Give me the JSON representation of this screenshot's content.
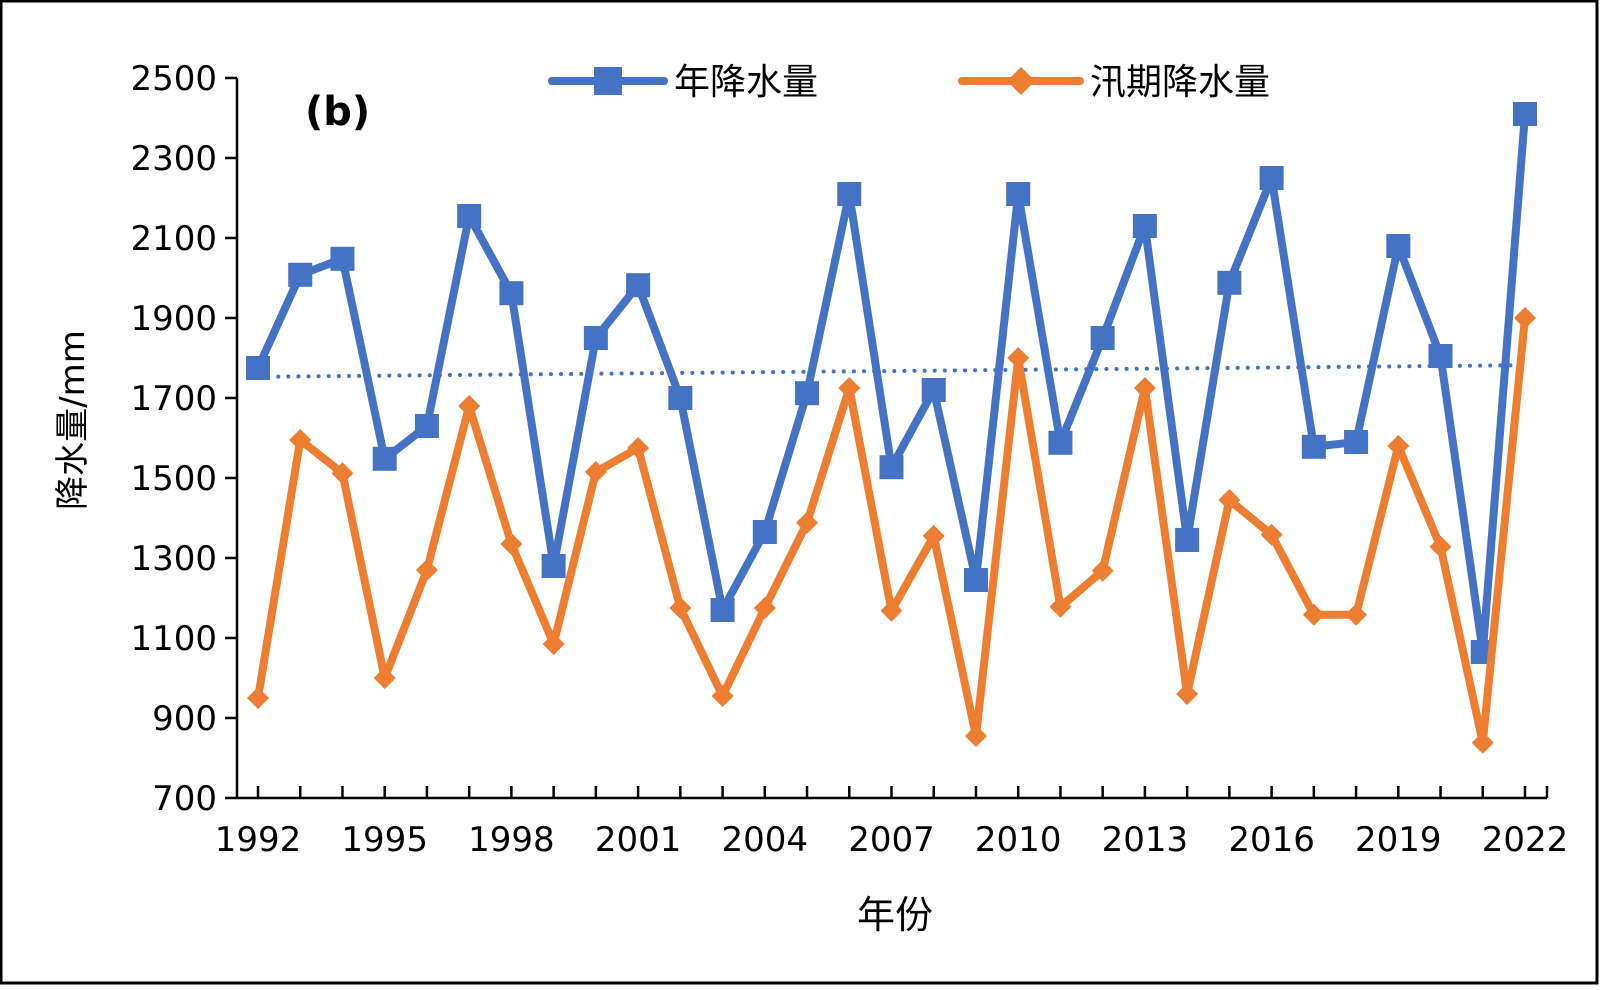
{
  "chart_data": {
    "type": "line",
    "panel_label": "(b)",
    "xlabel": "年份",
    "ylabel": "降水量/mm",
    "ylim": [
      700,
      2500
    ],
    "yticks": [
      700,
      900,
      1100,
      1300,
      1500,
      1700,
      1900,
      2100,
      2300,
      2500
    ],
    "xlim": [
      1992,
      2022
    ],
    "xtick_labels": [
      1992,
      1995,
      1998,
      2001,
      2004,
      2007,
      2010,
      2013,
      2016,
      2019,
      2022
    ],
    "legend_position": "top",
    "x": [
      1992,
      1993,
      1994,
      1995,
      1996,
      1997,
      1998,
      1999,
      2000,
      2001,
      2002,
      2003,
      2004,
      2005,
      2006,
      2007,
      2008,
      2009,
      2010,
      2011,
      2012,
      2013,
      2014,
      2015,
      2016,
      2017,
      2018,
      2019,
      2020,
      2021,
      2022
    ],
    "series": [
      {
        "name": "年降水量",
        "color": "#4472C4",
        "marker": "square",
        "values": [
          1775,
          2008,
          2048,
          1548,
          1630,
          2155,
          1962,
          1280,
          1850,
          1982,
          1700,
          1170,
          1365,
          1712,
          2210,
          1527,
          1720,
          1245,
          2210,
          1588,
          1850,
          2130,
          1345,
          1988,
          2250,
          1578,
          1590,
          2080,
          1805,
          1065,
          2410
        ]
      },
      {
        "name": "汛期降水量",
        "color": "#ED7D31",
        "marker": "diamond",
        "values": [
          950,
          1595,
          1512,
          1000,
          1270,
          1680,
          1335,
          1085,
          1515,
          1575,
          1175,
          955,
          1175,
          1388,
          1725,
          1168,
          1355,
          855,
          1800,
          1178,
          1268,
          1725,
          960,
          1445,
          1358,
          1158,
          1158,
          1580,
          1328,
          838,
          1900
        ]
      }
    ],
    "trendline": {
      "series": "年降水量",
      "type": "linear",
      "color": "#4472C4",
      "start": 1753,
      "end": 1782
    }
  }
}
